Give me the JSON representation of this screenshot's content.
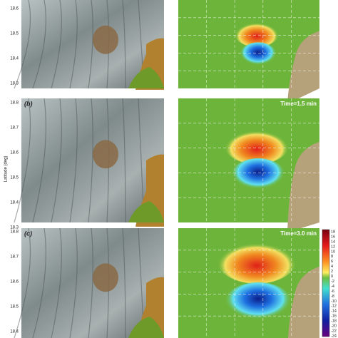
{
  "y_axis_label": "Latitude (deg)",
  "rows": [
    {
      "lat_ticks": [
        "18.6",
        "18.5",
        "18.4",
        "18.3"
      ]
    },
    {
      "panel_label": "(b)",
      "time_label": "Time=1.5 min",
      "lat_ticks": [
        "18.8",
        "18.7",
        "18.6",
        "18.5",
        "18.4",
        "18.3"
      ]
    },
    {
      "panel_label": "(c)",
      "time_label": "Time=3.0 min",
      "lat_ticks": [
        "18.8",
        "18.7",
        "18.6",
        "18.5",
        "18.4"
      ]
    }
  ],
  "colorbar_ticks": [
    "18",
    "16",
    "14",
    "12",
    "10",
    "8",
    "6",
    "4",
    "2",
    "0",
    "-2",
    "-4",
    "-6",
    "-8",
    "-10",
    "-12",
    "-14",
    "-16",
    "-18",
    "-20",
    "-22",
    "-24"
  ]
}
